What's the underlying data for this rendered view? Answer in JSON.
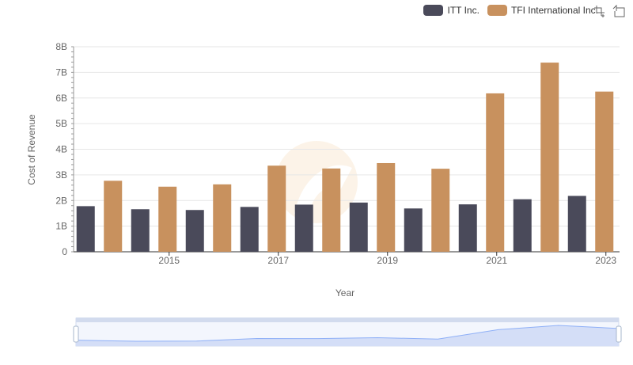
{
  "chart_data": {
    "type": "bar",
    "title": "",
    "xlabel": "Year",
    "ylabel": "Cost of Revenue",
    "categories": [
      "2014",
      "2015",
      "2016",
      "2017",
      "2018",
      "2019",
      "2020",
      "2021",
      "2022",
      "2023"
    ],
    "x_tick_labels": [
      "2015",
      "2017",
      "2019",
      "2021",
      "2023"
    ],
    "y_tick_labels": [
      "0",
      "1B",
      "2B",
      "3B",
      "4B",
      "5B",
      "6B",
      "7B",
      "8B"
    ],
    "ylim": [
      0,
      8000000000
    ],
    "grid": true,
    "legend_position": "top-right",
    "series": [
      {
        "name": "ITT Inc.",
        "color": "#4a4a5a",
        "values": [
          1780000000,
          1660000000,
          1630000000,
          1750000000,
          1840000000,
          1920000000,
          1690000000,
          1850000000,
          2050000000,
          2180000000
        ]
      },
      {
        "name": "TFI International Inc.",
        "color": "#c8915e",
        "values": [
          2770000000,
          2540000000,
          2630000000,
          3360000000,
          3250000000,
          3460000000,
          3240000000,
          6180000000,
          7380000000,
          6250000000
        ]
      }
    ]
  },
  "toolbox": {
    "zoom_icon": "zoom-icon",
    "restore_icon": "restore-icon"
  },
  "data_zoom": {
    "range_start": 0,
    "range_end": 1
  }
}
